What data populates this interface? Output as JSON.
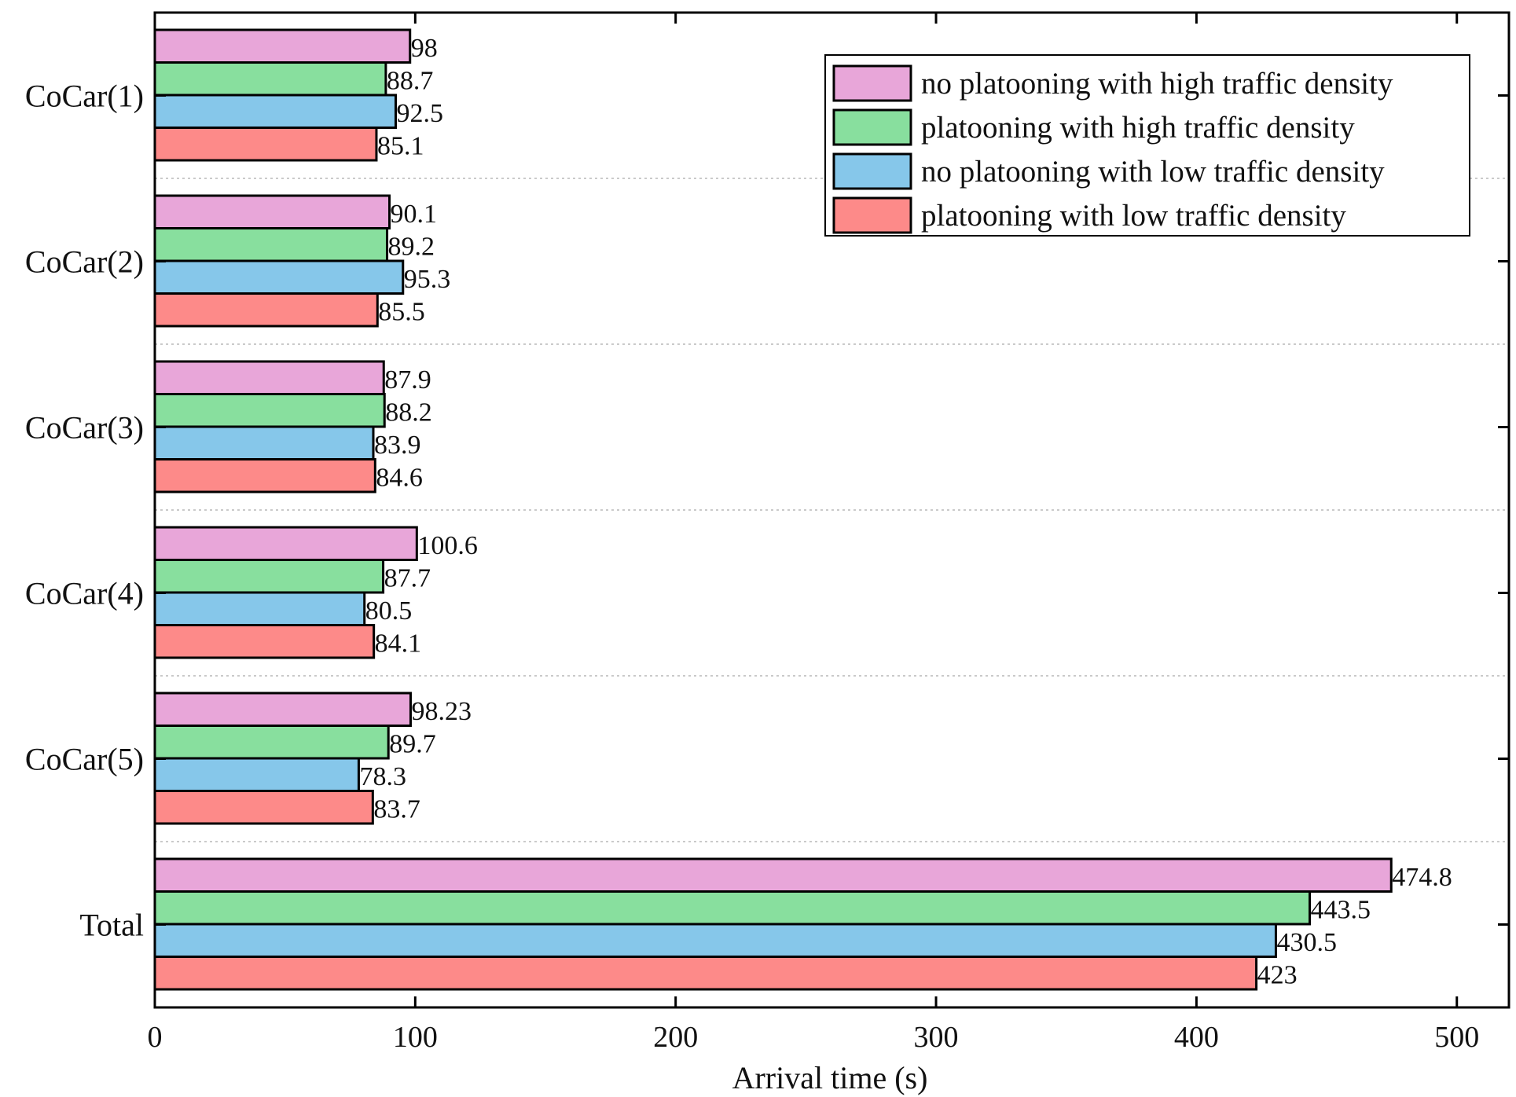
{
  "chart_data": {
    "type": "bar",
    "orientation": "horizontal",
    "title": "",
    "xlabel": "Arrival time (s)",
    "ylabel": "",
    "xlim": [
      0,
      520
    ],
    "xticks": [
      0,
      100,
      200,
      300,
      400,
      500
    ],
    "categories": [
      "CoCar(1)",
      "CoCar(2)",
      "CoCar(3)",
      "CoCar(4)",
      "CoCar(5)",
      "Total"
    ],
    "series": [
      {
        "name": "no platooning with high traffic density",
        "color": "#e8a6d9",
        "values": [
          98,
          90.1,
          87.9,
          100.6,
          98.23,
          474.8
        ],
        "labels": [
          "98",
          "90.1",
          "87.9",
          "100.6",
          "98.23",
          "474.8"
        ]
      },
      {
        "name": "platooning with high traffic density",
        "color": "#88df9e",
        "values": [
          88.7,
          89.2,
          88.2,
          87.7,
          89.7,
          443.5
        ],
        "labels": [
          "88.7",
          "89.2",
          "88.2",
          "87.7",
          "89.7",
          "443.5"
        ]
      },
      {
        "name": "no platooning with low traffic density",
        "color": "#86c7ea",
        "values": [
          92.5,
          95.3,
          83.9,
          80.5,
          78.3,
          430.5
        ],
        "labels": [
          "92.5",
          "95.3",
          "83.9",
          "80.5",
          "78.3",
          "430.5"
        ]
      },
      {
        "name": "platooning with low traffic density",
        "color": "#fd8a89",
        "values": [
          85.1,
          85.5,
          84.6,
          84.1,
          83.7,
          423
        ],
        "labels": [
          "85.1",
          "85.5",
          "84.6",
          "84.1",
          "83.7",
          "423"
        ]
      }
    ],
    "legend_position": "top-right",
    "grid": "horizontal dotted separators"
  }
}
